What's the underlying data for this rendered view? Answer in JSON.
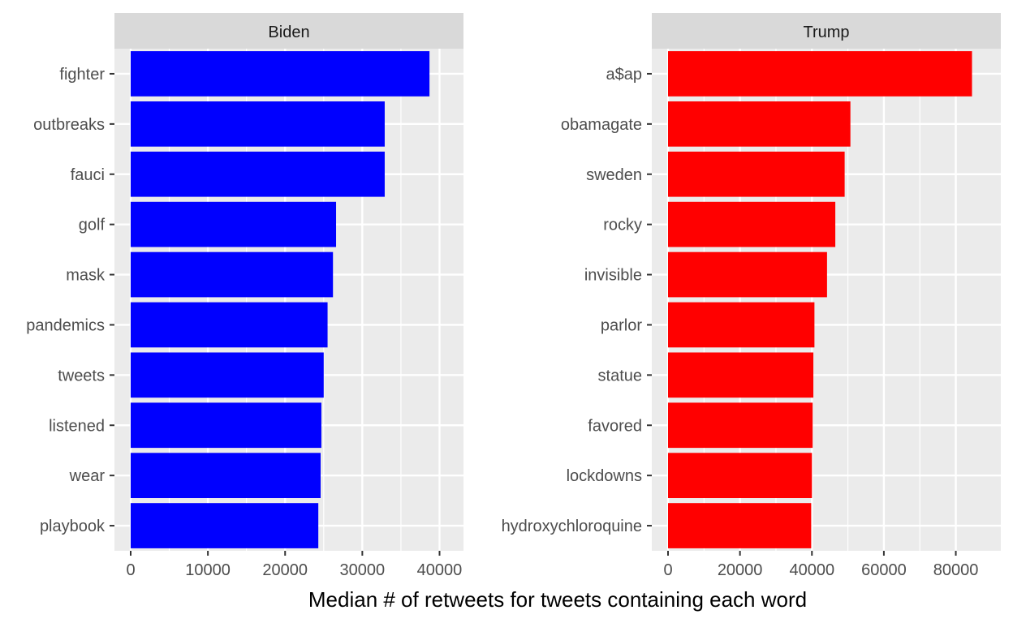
{
  "chart_data": {
    "type": "bar",
    "orientation": "horizontal",
    "xlabel": "Median # of retweets for tweets containing each word",
    "grid": true,
    "facets": [
      {
        "title": "Biden",
        "color": "#0000ff",
        "xlim": [
          0,
          41000
        ],
        "xticks": [
          0,
          10000,
          20000,
          30000,
          40000
        ],
        "categories": [
          "fighter",
          "outbreaks",
          "fauci",
          "golf",
          "mask",
          "pandemics",
          "tweets",
          "listened",
          "wear",
          "playbook"
        ],
        "values": [
          38700,
          32900,
          32900,
          26600,
          26200,
          25500,
          25000,
          24700,
          24600,
          24300
        ]
      },
      {
        "title": "Trump",
        "color": "#ff0000",
        "xlim": [
          0,
          88000
        ],
        "xticks": [
          0,
          20000,
          40000,
          60000,
          80000
        ],
        "categories": [
          "a$ap",
          "obamagate",
          "sweden",
          "rocky",
          "invisible",
          "parlor",
          "statue",
          "favored",
          "lockdowns",
          "hydroxychloroquine"
        ],
        "values": [
          84500,
          50700,
          49100,
          46500,
          44200,
          40700,
          40400,
          40200,
          40000,
          39800
        ]
      }
    ]
  }
}
